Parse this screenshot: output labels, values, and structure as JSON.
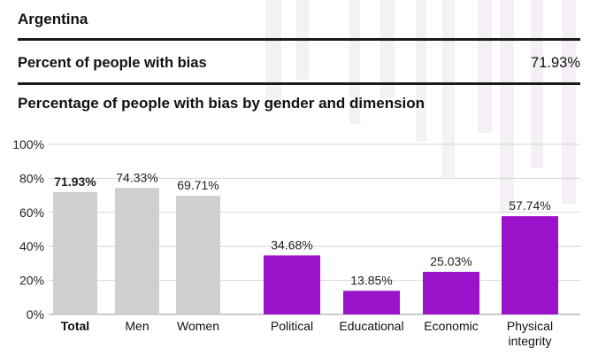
{
  "header": {
    "country": "Argentina",
    "metric_label": "Percent of people with bias",
    "metric_value": "71.93%"
  },
  "colors": {
    "gender_bar": "#cfcfcf",
    "dimension_bar": "#9a12c9",
    "gridline": "#d6d6d6",
    "rule": "#1a1a1a"
  },
  "chart_data": {
    "type": "bar",
    "title": "Percentage of people with bias by gender and dimension",
    "xlabel": "",
    "ylabel": "",
    "ylim": [
      0,
      100
    ],
    "y_ticks": [
      "0%",
      "20%",
      "40%",
      "60%",
      "80%",
      "100%"
    ],
    "grid": true,
    "categories": [
      "Total",
      "Men",
      "Women",
      "Political",
      "Educational",
      "Economic",
      "Physical integrity"
    ],
    "values": [
      71.93,
      74.33,
      69.71,
      34.68,
      13.85,
      25.03,
      57.74
    ],
    "data_labels": [
      "71.93%",
      "74.33%",
      "69.71%",
      "34.68%",
      "13.85%",
      "25.03%",
      "57.74%"
    ],
    "groups": [
      "gender",
      "gender",
      "gender",
      "dimension",
      "dimension",
      "dimension",
      "dimension"
    ]
  }
}
